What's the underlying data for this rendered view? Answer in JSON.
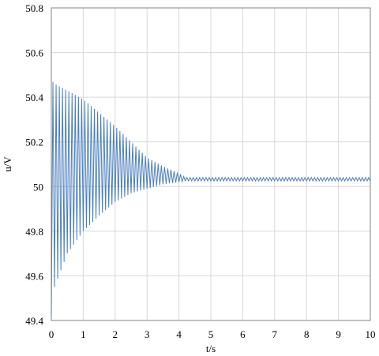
{
  "chart_data": {
    "type": "line",
    "title": "",
    "xlabel": "t/s",
    "ylabel": "u/V",
    "xlim": [
      0,
      10
    ],
    "ylim": [
      49.4,
      50.8
    ],
    "x_ticks": [
      "0",
      "1",
      "2",
      "3",
      "4",
      "5",
      "6",
      "7",
      "8",
      "9",
      "10"
    ],
    "y_ticks": [
      "50.8",
      "50.6",
      "50.4",
      "50.2",
      "50",
      "49.8",
      "49.6",
      "49.4"
    ],
    "grid": true,
    "legend": "none",
    "series": [
      {
        "color": "#4a7ebb",
        "description_of_shape": "damped oscillation about 50 V",
        "x": [
          0,
          0.04,
          0.1,
          0.5,
          1.0,
          1.5,
          2.0,
          2.5,
          3.0,
          3.5,
          4.0,
          4.2,
          5.0,
          6.0,
          7.0,
          8.0,
          9.0,
          10.0
        ],
        "upper_envelope": [
          49.42,
          50.47,
          50.46,
          50.43,
          50.39,
          50.33,
          50.27,
          50.2,
          50.13,
          50.09,
          50.06,
          50.04,
          50.04,
          50.04,
          50.04,
          50.04,
          50.04,
          50.04
        ],
        "lower_envelope": [
          49.42,
          49.45,
          49.55,
          49.7,
          49.8,
          49.87,
          49.93,
          49.97,
          49.99,
          50.01,
          50.02,
          50.025,
          50.025,
          50.025,
          50.025,
          50.025,
          50.025,
          50.025
        ],
        "period_s": 0.1
      }
    ]
  }
}
